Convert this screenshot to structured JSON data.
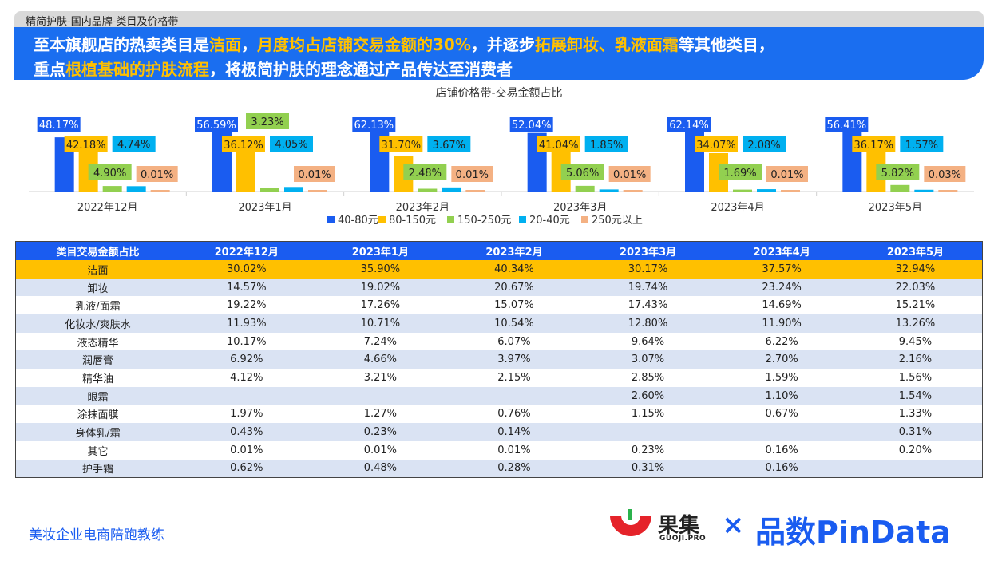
{
  "header": {
    "breadcrumb": "精简护肤-国内品牌-类目及价格带",
    "headline_line1": [
      {
        "text": "至本旗舰店的热卖类目是",
        "hl": false
      },
      {
        "text": "洁面",
        "hl": true
      },
      {
        "text": "，",
        "hl": false
      },
      {
        "text": "月度均占店铺交易金额的30%",
        "hl": true
      },
      {
        "text": "，并逐步",
        "hl": false
      },
      {
        "text": "拓展卸妆、乳液面霜",
        "hl": true
      },
      {
        "text": "等其他类目，",
        "hl": false
      }
    ],
    "headline_line2": [
      {
        "text": "重点",
        "hl": false
      },
      {
        "text": "根植基础的护肤流程",
        "hl": true
      },
      {
        "text": "，将极简护肤的理念通过产品传达至消费者",
        "hl": false
      }
    ]
  },
  "chart_data": {
    "type": "bar",
    "title": "店铺价格带-交易金额占比",
    "categories": [
      "2022年12月",
      "2023年1月",
      "2023年2月",
      "2023年3月",
      "2023年4月",
      "2023年5月"
    ],
    "series": [
      {
        "name": "40-80元",
        "color": "#1a5cf0",
        "values": [
          48.17,
          56.59,
          62.13,
          52.04,
          62.14,
          56.41
        ],
        "labels": [
          "48.17%",
          "56.59%",
          "62.13%",
          "52.04%",
          "62.14%",
          "56.41%"
        ]
      },
      {
        "name": "80-150元",
        "color": "#ffc000",
        "values": [
          42.18,
          36.12,
          31.7,
          41.04,
          34.07,
          36.17
        ],
        "labels": [
          "42.18%",
          "36.12%",
          "31.70%",
          "41.04%",
          "34.07%",
          "36.17%"
        ]
      },
      {
        "name": "150-250元",
        "color": "#92d050",
        "values": [
          4.9,
          3.23,
          2.48,
          5.06,
          1.69,
          5.82
        ],
        "labels": [
          "4.90%",
          "3.23%",
          "2.48%",
          "5.06%",
          "1.69%",
          "5.82%"
        ]
      },
      {
        "name": "20-40元",
        "color": "#00b0f0",
        "values": [
          4.74,
          4.05,
          3.67,
          1.85,
          2.08,
          1.57
        ],
        "labels": [
          "4.74%",
          "4.05%",
          "3.67%",
          "1.85%",
          "2.08%",
          "1.57%"
        ]
      },
      {
        "name": "250元以上",
        "color": "#f4b183",
        "values": [
          0.01,
          0.01,
          0.01,
          0.01,
          0.01,
          0.03
        ],
        "labels": [
          "0.01%",
          "0.01%",
          "0.01%",
          "0.01%",
          "0.01%",
          "0.03%"
        ]
      }
    ],
    "ylim": [
      0,
      70
    ],
    "legend": "bottom",
    "grid": false
  },
  "table": {
    "headers": [
      "类目交易金额占比",
      "2022年12月",
      "2023年1月",
      "2023年2月",
      "2023年3月",
      "2023年4月",
      "2023年5月"
    ],
    "rows": [
      [
        "洁面",
        "30.02%",
        "35.90%",
        "40.34%",
        "30.17%",
        "37.57%",
        "32.94%"
      ],
      [
        "卸妆",
        "14.57%",
        "19.02%",
        "20.67%",
        "19.74%",
        "23.24%",
        "22.03%"
      ],
      [
        "乳液/面霜",
        "19.22%",
        "17.26%",
        "15.07%",
        "17.43%",
        "14.69%",
        "15.21%"
      ],
      [
        "化妆水/爽肤水",
        "11.93%",
        "10.71%",
        "10.54%",
        "12.80%",
        "11.90%",
        "13.26%"
      ],
      [
        "液态精华",
        "10.17%",
        "7.24%",
        "6.07%",
        "9.64%",
        "6.22%",
        "9.45%"
      ],
      [
        "润唇膏",
        "6.92%",
        "4.66%",
        "3.97%",
        "3.07%",
        "2.70%",
        "2.16%"
      ],
      [
        "精华油",
        "4.12%",
        "3.21%",
        "2.15%",
        "2.85%",
        "1.59%",
        "1.56%"
      ],
      [
        "眼霜",
        "",
        "",
        "",
        "2.60%",
        "1.10%",
        "1.54%"
      ],
      [
        "涂抹面膜",
        "1.97%",
        "1.27%",
        "0.76%",
        "1.15%",
        "0.67%",
        "1.33%"
      ],
      [
        "身体乳/霜",
        "0.43%",
        "0.23%",
        "0.14%",
        "",
        "",
        "0.31%"
      ],
      [
        "其它",
        "0.01%",
        "0.01%",
        "0.01%",
        "0.23%",
        "0.16%",
        "0.20%"
      ],
      [
        "护手霜",
        "0.62%",
        "0.48%",
        "0.28%",
        "0.31%",
        "0.16%",
        ""
      ]
    ],
    "highlight_color": "#ffc000"
  },
  "footer": {
    "left_text": "美妆企业电商陪跑教练",
    "logo_guoji_cn": "果集",
    "logo_guoji_en": "GUOJI.PRO",
    "logo_x": "×",
    "logo_pindata": "品数PinData"
  },
  "colors": {
    "brand_blue": "#1a6ef0",
    "accent_yellow": "#ffc000"
  }
}
